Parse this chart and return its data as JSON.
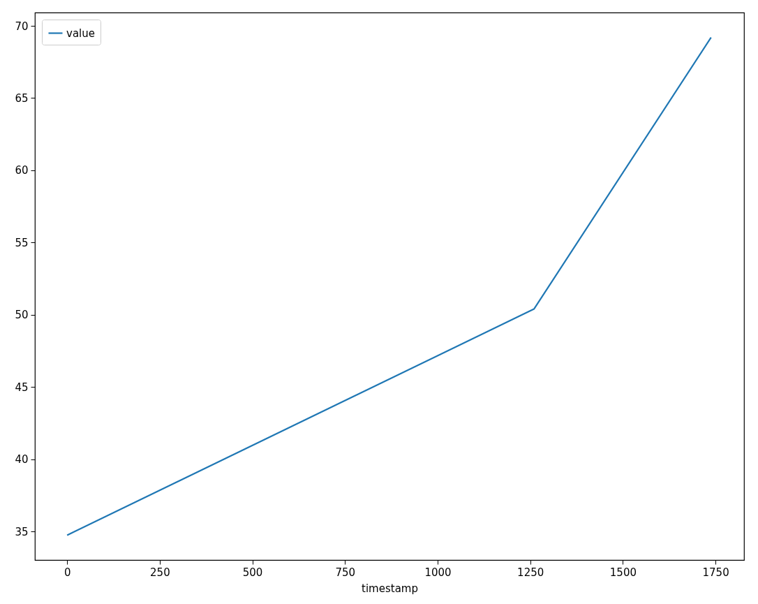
{
  "chart_data": {
    "type": "line",
    "xlabel": "timestamp",
    "x": [
      0,
      1260,
      1738
    ],
    "series": [
      {
        "name": "value",
        "color": "#1f77b4",
        "values": [
          34.75,
          50.4,
          69.2
        ]
      }
    ],
    "xlim": [
      -87,
      1827
    ],
    "ylim": [
      33.03,
      70.92
    ],
    "xticks": [
      0,
      250,
      500,
      750,
      1000,
      1250,
      1500,
      1750
    ],
    "yticks": [
      35,
      40,
      45,
      50,
      55,
      60,
      65,
      70
    ],
    "legend": "top left",
    "grid": false,
    "marker": "none",
    "line_style": "solid"
  }
}
